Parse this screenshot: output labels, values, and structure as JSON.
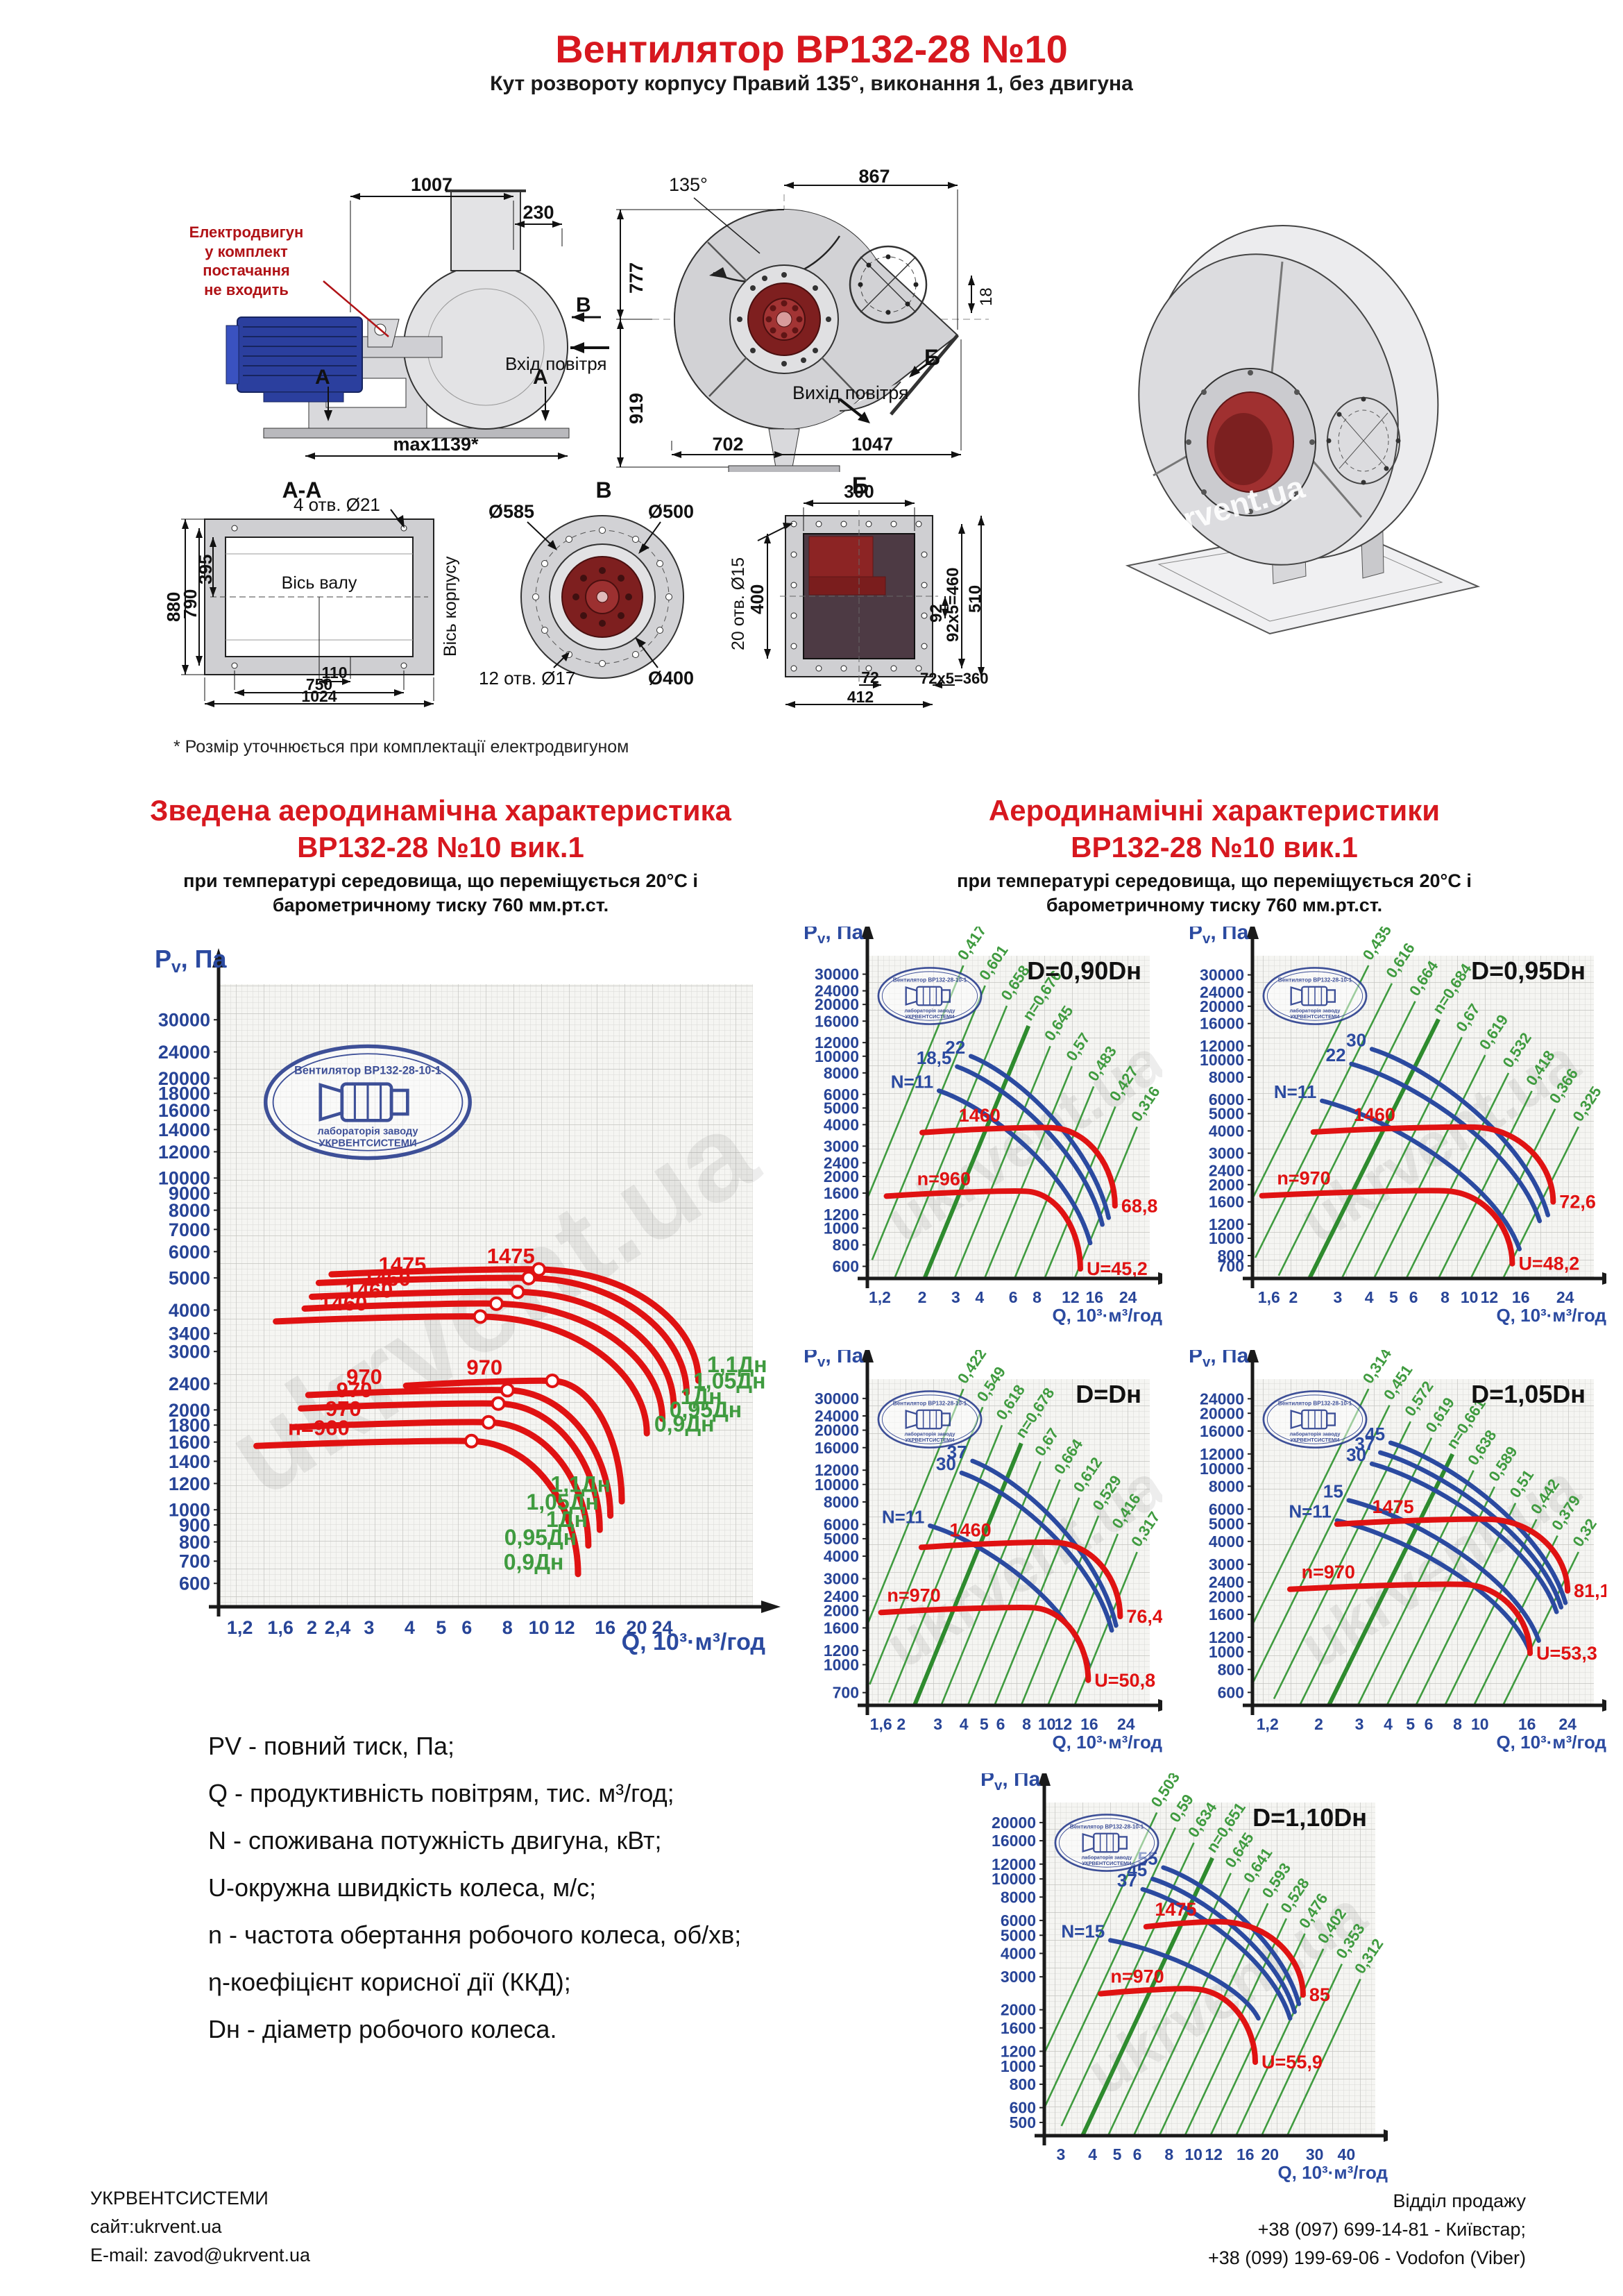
{
  "page": {
    "title": "Вентилятор ВР132-28 №10",
    "subtitle": "Кут розвороту корпусу Правий 135°, виконання 1, без двигуна",
    "footnote": "* Розмір уточнюється при комплектації електродвигуном",
    "watermark": "ukrvent.ua"
  },
  "stamp": {
    "line1": "Вентилятор ВР132-28-10-1",
    "line2": "лабораторія заводу",
    "line3": "УКРВЕНТСИСТЕМИ"
  },
  "drawings": {
    "side": {
      "note": "Електродвигун\nу комплект постачання\nне входить",
      "dim_top": "1007",
      "dim_top2": "230",
      "dim_bottom": "max1139*",
      "label_b": "В",
      "label_a1": "А",
      "label_a2": "А",
      "inlet": "Вхід повітря"
    },
    "front": {
      "angle": "135°",
      "dim_top": "867",
      "dim_left_up": "777",
      "dim_left_down": "919",
      "dim_right": "18",
      "label": "Б",
      "outlet": "Вихід повітря",
      "dim_bot_left": "702",
      "dim_bot_right": "1047"
    },
    "aa": {
      "title": "А-А",
      "holes": "4 отв. Ø21",
      "dim_h1": "880",
      "dim_h2": "790",
      "dim_h3": "395",
      "axis_shaft": "Вісь валу",
      "axis_body": "Вісь корпусу",
      "dim_b1": "110",
      "dim_b2": "750",
      "dim_b3": "1024"
    },
    "v": {
      "title": "В",
      "d1": "Ø585",
      "d2": "Ø500",
      "d3": "Ø400",
      "holes": "12 отв. Ø17"
    },
    "b": {
      "title": "Б",
      "holes": "20 отв. Ø15",
      "dim_top": "300",
      "dim_left": "400",
      "dim_r1": "92",
      "dim_r2": "92x5=460",
      "dim_r3": "510",
      "dim_b1": "72",
      "dim_b2": "412",
      "dim_b3": "72x5=360"
    }
  },
  "sections": {
    "left_title1": "Зведена аеродинамічна характеристика",
    "left_title2": "ВР132-28 №10 вик.1",
    "right_title1": "Аеродинамічні характеристики",
    "right_title2": "ВР132-28 №10 вик.1",
    "sub1": "при температурі середовища, що переміщується 20°С і",
    "sub2": "барометричному тиску 760 мм.рт.ст."
  },
  "legend": {
    "items": [
      "PV - повний тиск, Па;",
      "Q - продуктивність повітрям, тис. м³/год;",
      "N - споживана потужність двигуна, кВт;",
      "U-окружна швидкість колеса, м/с;",
      "n - частота обертання робочого колеса, об/хв;",
      "η-коефіцієнт корисної дії (ККД);",
      "Dн - діаметр робочого колеса."
    ]
  },
  "footer": {
    "company": "УКРВЕНТСИСТЕМИ",
    "site": "сайт:ukrvent.ua",
    "email": "E-mail: zavod@ukrvent.ua",
    "dept": "Відділ продажу",
    "phone1": "+38 (097) 699-14-81 - Київстар;",
    "phone2": "+38 (099) 199-69-06 - Vodofon (Viber)"
  },
  "chart_data": {
    "summary": {
      "id": "summary",
      "type": "line",
      "ylabel": "Pv, Па",
      "xlabel": "Q, 10³·м³/год",
      "grid": true,
      "yticks": [
        30000,
        24000,
        20000,
        18000,
        16000,
        14000,
        12000,
        10000,
        9000,
        8000,
        7000,
        6000,
        5000,
        4000,
        3400,
        3000,
        2400,
        2000,
        1800,
        1600,
        1400,
        1200,
        1000,
        900,
        800,
        700,
        600
      ],
      "xticks": [
        "1,2",
        "1,6",
        "2",
        "2,4",
        "3",
        "4",
        "5",
        "6",
        "8",
        "10",
        "12",
        "16",
        "20",
        "24"
      ],
      "pressure_curves": [
        {
          "label": "1475",
          "label_q": 8.2,
          "flat_pv": 5200,
          "q_start": 2.3,
          "q_knee": 10.0,
          "q_end": 31.0,
          "pv_end": 2450
        },
        {
          "label": "1475",
          "label_q": 3.8,
          "flat_pv": 4900,
          "q_start": 2.1,
          "q_knee": 9.3,
          "q_end": 28.5,
          "pv_end": 2250
        },
        {
          "label": "1460",
          "label_q": 3.4,
          "flat_pv": 4450,
          "q_start": 2.0,
          "q_knee": 8.6,
          "q_end": 26.0,
          "pv_end": 2060
        },
        {
          "label": "1460",
          "label_q": 3.0,
          "flat_pv": 4100,
          "q_start": 1.9,
          "q_knee": 7.4,
          "q_end": 24.0,
          "pv_end": 1880
        },
        {
          "label": "1460",
          "label_q": 2.5,
          "flat_pv": 3750,
          "q_start": 1.55,
          "q_knee": 6.6,
          "q_end": 21.5,
          "pv_end": 1700
        },
        {
          "label": "970",
          "label_q": 6.8,
          "flat_pv": 2400,
          "q_start": 3.9,
          "q_knee": 11.0,
          "q_end": 18.0,
          "pv_end": 1060
        },
        {
          "label": "970",
          "label_q": 2.9,
          "flat_pv": 2250,
          "q_start": 1.95,
          "q_knee": 8.0,
          "q_end": 16.6,
          "pv_end": 960
        },
        {
          "label": "970",
          "label_q": 2.7,
          "flat_pv": 2050,
          "q_start": 1.85,
          "q_knee": 7.5,
          "q_end": 15.4,
          "pv_end": 870
        },
        {
          "label": "970",
          "label_q": 2.5,
          "flat_pv": 1800,
          "q_start": 1.75,
          "q_knee": 7.0,
          "q_end": 14.2,
          "pv_end": 780
        },
        {
          "label": "n=960",
          "label_q": 2.1,
          "flat_pv": 1580,
          "q_start": 1.35,
          "q_knee": 6.2,
          "q_end": 13.2,
          "pv_end": 640
        }
      ],
      "dn_labels_upper": [
        {
          "label": "1,1Дн",
          "q": 32.0,
          "pv": 2600
        },
        {
          "label": "1,05Дн",
          "q": 29.0,
          "pv": 2320
        },
        {
          "label": "1Дн",
          "q": 26.5,
          "pv": 2080
        },
        {
          "label": "0,95Дн",
          "q": 24.5,
          "pv": 1900
        },
        {
          "label": "0,9Дн",
          "q": 22.0,
          "pv": 1720
        }
      ],
      "dn_labels_lower": [
        {
          "label": "1,1Дн",
          "q": 17.3,
          "pv": 1200
        },
        {
          "label": "1,05Дн",
          "q": 15.9,
          "pv": 1060
        },
        {
          "label": "1Дн",
          "q": 14.7,
          "pv": 940
        },
        {
          "label": "0,95Дн",
          "q": 13.6,
          "pv": 830
        },
        {
          "label": "0,9Дн",
          "q": 12.4,
          "pv": 700
        }
      ]
    },
    "small": [
      {
        "id": "d090",
        "type": "line",
        "title": "D=0,90Dн",
        "ylabel": "Pv, Па",
        "xlabel": "Q, 10³·м³/год",
        "grid": true,
        "yticks": [
          30000,
          24000,
          20000,
          16000,
          12000,
          10000,
          8000,
          6000,
          5000,
          4000,
          3000,
          2400,
          2000,
          1600,
          1200,
          1000,
          800,
          600
        ],
        "xticks": [
          "1,2",
          "2",
          "3",
          "4",
          "6",
          "8",
          "12",
          "16",
          "24"
        ],
        "eta_lines": [
          "0,417",
          "0,601",
          "0,658",
          "n=0,676",
          "0,645",
          "0,57",
          "0,483",
          "0,427",
          "0,316"
        ],
        "power_curves_kW": [
          {
            "label": "22",
            "from": [
              3.6,
              10000
            ],
            "to": [
              19,
              1150
            ]
          },
          {
            "label": "18,5",
            "from": [
              3.05,
              8700
            ],
            "to": [
              17.6,
              1050
            ]
          },
          {
            "label": "N=11",
            "from": [
              2.45,
              6300
            ],
            "to": [
              15.2,
              820
            ]
          }
        ],
        "pressure_curves": [
          {
            "label": "1460",
            "label_q": 4.0,
            "flat_pv": 3700,
            "q_start": 2.0,
            "q_knee": 9.5,
            "q_end": 20.5,
            "pv_end": 1350,
            "end_label": "68,8"
          },
          {
            "label": "n=960",
            "label_q": 2.6,
            "flat_pv": 1580,
            "q_start": 1.3,
            "q_knee": 7.0,
            "q_end": 13.5,
            "pv_end": 580,
            "end_label": "U=45,2"
          }
        ]
      },
      {
        "id": "d095",
        "type": "line",
        "title": "D=0,95Dн",
        "ylabel": "Pv, Па",
        "xlabel": "Q, 10³·м³/год",
        "grid": true,
        "yticks": [
          30000,
          24000,
          20000,
          16000,
          12000,
          10000,
          8000,
          6000,
          5000,
          4000,
          3000,
          2400,
          2000,
          1600,
          1200,
          1000,
          800,
          700
        ],
        "xticks": [
          "1,6",
          "2",
          "3",
          "4",
          "5",
          "6",
          "8",
          "10",
          "12",
          "16",
          "24"
        ],
        "eta_lines": [
          "0,435",
          "0,616",
          "0,664",
          "n=0,684",
          "0,67",
          "0,619",
          "0,532",
          "0,418",
          "0,366",
          "0,325"
        ],
        "power_curves_kW": [
          {
            "label": "30",
            "from": [
              4.1,
              11500
            ],
            "to": [
              20.5,
              1350
            ]
          },
          {
            "label": "22",
            "from": [
              3.4,
              9500
            ],
            "to": [
              19,
              1250
            ]
          },
          {
            "label": "N=11",
            "from": [
              2.6,
              5900
            ],
            "to": [
              15.8,
              870
            ]
          }
        ],
        "pressure_curves": [
          {
            "label": "1460",
            "label_q": 4.2,
            "flat_pv": 4050,
            "q_start": 2.4,
            "q_knee": 10.5,
            "q_end": 21.5,
            "pv_end": 1600,
            "end_label": "72,6"
          },
          {
            "label": "n=970",
            "label_q": 2.2,
            "flat_pv": 1780,
            "q_start": 1.5,
            "q_knee": 8.0,
            "q_end": 14.8,
            "pv_end": 720,
            "end_label": "U=48,2"
          }
        ]
      },
      {
        "id": "dn",
        "type": "line",
        "title": "D=Dн",
        "ylabel": "Pv, Па",
        "xlabel": "Q, 10³·м³/год",
        "grid": true,
        "yticks": [
          30000,
          24000,
          20000,
          16000,
          12000,
          10000,
          8000,
          6000,
          5000,
          4000,
          3000,
          2400,
          2000,
          1600,
          1200,
          1000,
          700
        ],
        "xticks": [
          "1,6",
          "2",
          "3",
          "4",
          "5",
          "6",
          "8",
          "10",
          "12",
          "16",
          "24"
        ],
        "eta_lines": [
          "0,422",
          "0,549",
          "0,618",
          "n=0,678",
          "0,67",
          "0,664",
          "0,612",
          "0,529",
          "0,416",
          "0,317"
        ],
        "power_curves_kW": [
          {
            "label": "37",
            "from": [
              4.4,
              13500
            ],
            "to": [
              21.5,
              1650
            ]
          },
          {
            "label": "30",
            "from": [
              3.9,
              11600
            ],
            "to": [
              20.5,
              1550
            ]
          },
          {
            "label": "N=11",
            "from": [
              2.75,
              5900
            ],
            "to": [
              15.8,
              1000
            ]
          }
        ],
        "pressure_curves": [
          {
            "label": "1460",
            "label_q": 4.3,
            "flat_pv": 4600,
            "q_start": 2.5,
            "q_knee": 11.0,
            "q_end": 22.5,
            "pv_end": 1850,
            "end_label": "76,4"
          },
          {
            "label": "n=970",
            "label_q": 2.3,
            "flat_pv": 2000,
            "q_start": 1.6,
            "q_knee": 8.5,
            "q_end": 15.8,
            "pv_end": 820,
            "end_label": "U=50,8"
          }
        ]
      },
      {
        "id": "d105",
        "type": "line",
        "title": "D=1,05Dн",
        "ylabel": "Pv, Па",
        "xlabel": "Q, 10³·м³/год",
        "grid": true,
        "yticks": [
          24000,
          20000,
          16000,
          12000,
          10000,
          8000,
          6000,
          5000,
          4000,
          3000,
          2400,
          2000,
          1600,
          1200,
          1000,
          800,
          600
        ],
        "xticks": [
          "1,2",
          "2",
          "3",
          "4",
          "5",
          "6",
          "8",
          "10",
          "16",
          "24"
        ],
        "eta_lines": [
          "0,314",
          "0,451",
          "0,572",
          "0,619",
          "n=0,661",
          "0,638",
          "0,589",
          "0,51",
          "0,442",
          "0,379",
          "0,32"
        ],
        "power_curves_kW": [
          {
            "label": "45",
            "from": [
              4.1,
              13800
            ],
            "to": [
              23.5,
              1850
            ]
          },
          {
            "label": "37",
            "from": [
              3.7,
              12200
            ],
            "to": [
              22.5,
              1750
            ]
          },
          {
            "label": "30",
            "from": [
              3.4,
              10600
            ],
            "to": [
              21.5,
              1650
            ]
          },
          {
            "label": "15",
            "from": [
              2.7,
              6700
            ],
            "to": [
              18,
              1150
            ]
          },
          {
            "label": "N=11",
            "from": [
              2.4,
              5200
            ],
            "to": [
              16.5,
              1000
            ]
          }
        ],
        "pressure_curves": [
          {
            "label": "1475",
            "label_q": 4.2,
            "flat_pv": 5100,
            "q_start": 2.4,
            "q_knee": 11.0,
            "q_end": 24.0,
            "pv_end": 2150,
            "end_label": "81,1"
          },
          {
            "label": "n=970",
            "label_q": 2.2,
            "flat_pv": 2250,
            "q_start": 1.5,
            "q_knee": 8.5,
            "q_end": 16.5,
            "pv_end": 980,
            "end_label": "U=53,3"
          }
        ]
      },
      {
        "id": "d110",
        "type": "line",
        "title": "D=1,10Dн",
        "ylabel": "Pv, Па",
        "xlabel": "Q, 10³·м³/год",
        "grid": true,
        "yticks": [
          20000,
          16000,
          12000,
          10000,
          8000,
          6000,
          5000,
          4000,
          3000,
          2000,
          1600,
          1200,
          1000,
          800,
          600,
          500
        ],
        "xticks": [
          "3",
          "4",
          "5",
          "6",
          "8",
          "10",
          "12",
          "16",
          "20",
          "30",
          "40"
        ],
        "eta_lines": [
          "0,503",
          "0,59",
          "0,634",
          "n=0,651",
          "0,645",
          "0,641",
          "0,593",
          "0,528",
          "0,476",
          "0,402",
          "0,353",
          "0,312"
        ],
        "power_curves_kW": [
          {
            "label": "55",
            "from": [
              7.6,
              11500
            ],
            "to": [
              26,
              2150
            ]
          },
          {
            "label": "45",
            "from": [
              6.9,
              10000
            ],
            "to": [
              25,
              1950
            ]
          },
          {
            "label": "37",
            "from": [
              6.3,
              8800
            ],
            "to": [
              24,
              1800
            ]
          },
          {
            "label": "N=15",
            "from": [
              4.7,
              4700
            ],
            "to": [
              18,
              1800
            ]
          }
        ],
        "pressure_curves": [
          {
            "label": "1475",
            "label_q": 8.5,
            "flat_pv": 5700,
            "q_start": 6.5,
            "q_knee": 13.0,
            "q_end": 27.0,
            "pv_end": 2400,
            "end_label": "85"
          },
          {
            "label": "n=970",
            "label_q": 6.0,
            "flat_pv": 2500,
            "q_start": 4.3,
            "q_knee": 10.0,
            "q_end": 17.5,
            "pv_end": 1050,
            "end_label": "U=55,9"
          }
        ]
      }
    ]
  }
}
